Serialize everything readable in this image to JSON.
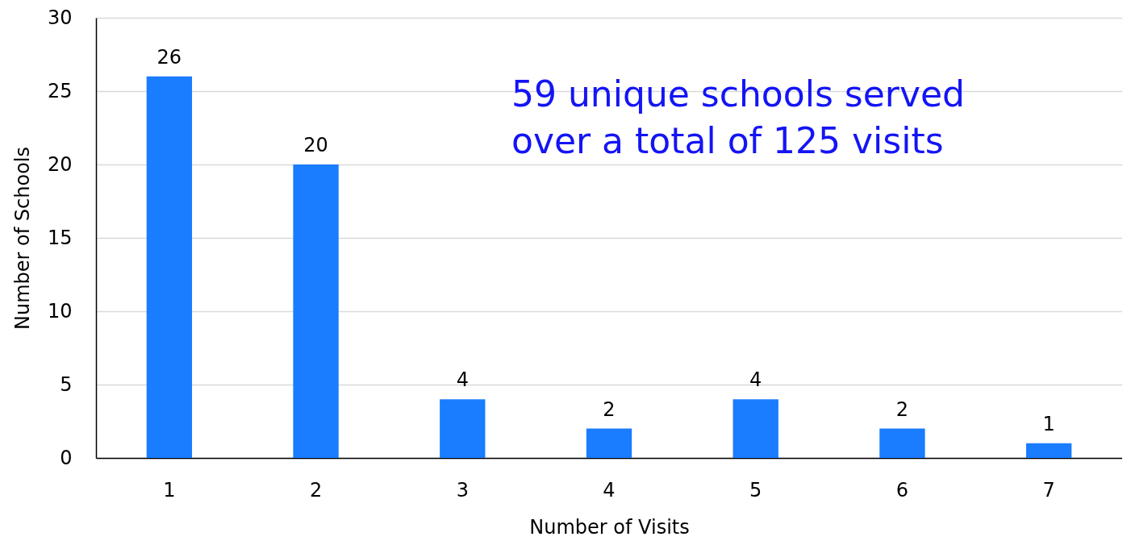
{
  "chart_data": {
    "type": "bar",
    "xlabel": "Number of Visits",
    "ylabel": "Number of Schools",
    "categories": [
      "1",
      "2",
      "3",
      "4",
      "5",
      "6",
      "7"
    ],
    "values": [
      26,
      20,
      4,
      2,
      4,
      2,
      1
    ],
    "color": "#1a7cff",
    "ylim": [
      0,
      30
    ],
    "yticks": [
      0,
      5,
      10,
      15,
      20,
      25,
      30
    ],
    "grid": "y",
    "data_labels": true,
    "annotations": [
      "59 unique schools served\nover a total of 125 visits"
    ]
  }
}
